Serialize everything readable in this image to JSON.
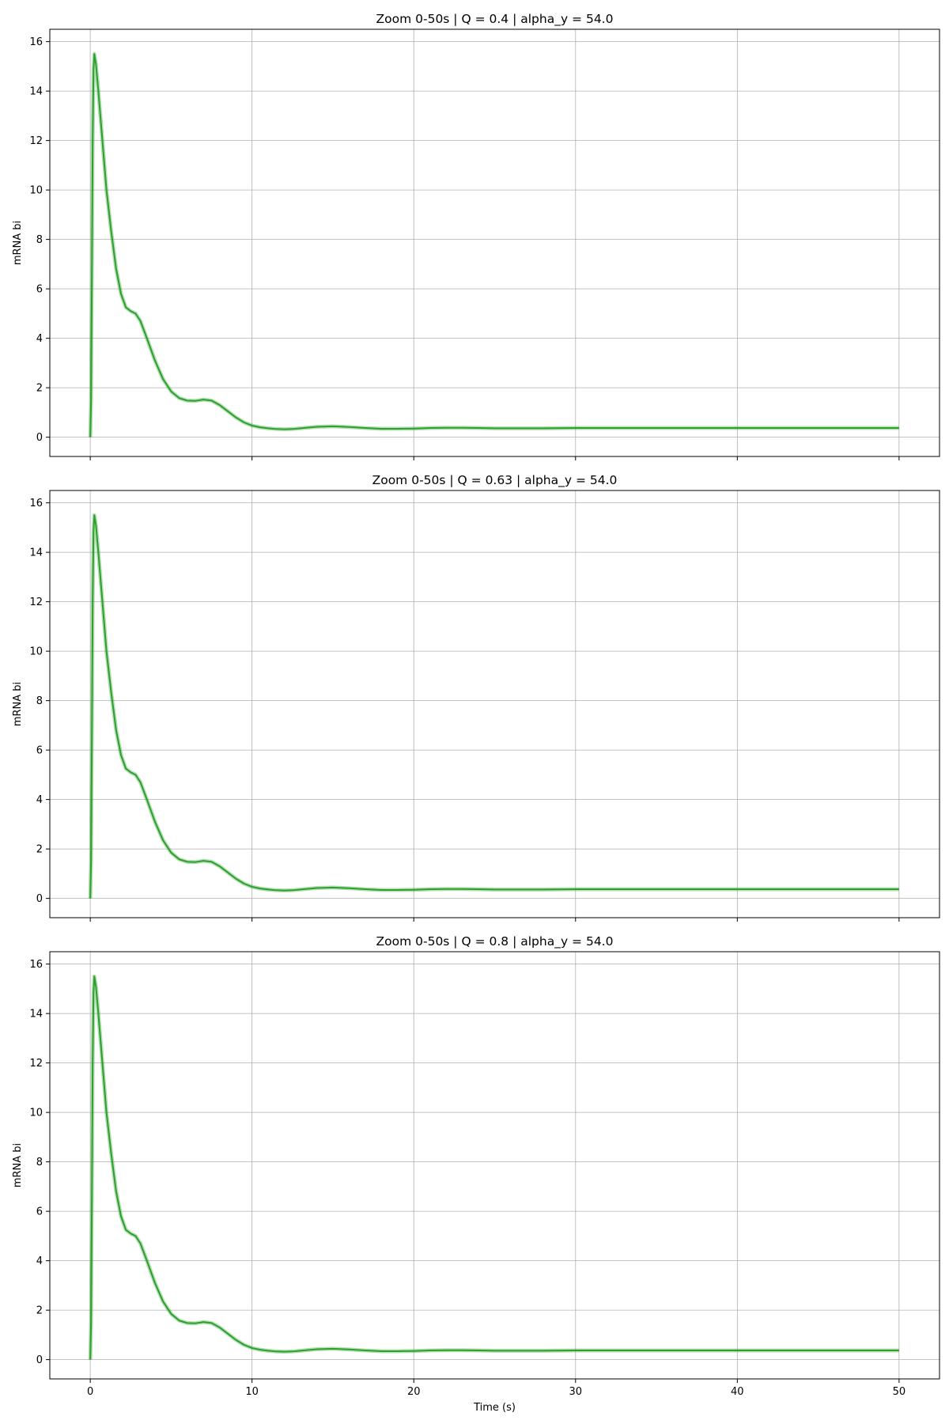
{
  "chart_data": [
    {
      "type": "line",
      "title": "Zoom 0-50s | Q = 0.4 | alpha_y = 54.0",
      "xlabel": "",
      "ylabel": "mRNA bi",
      "xlim": [
        -2.5,
        52.5
      ],
      "ylim": [
        -0.78,
        16.5
      ],
      "xticks": [
        0,
        10,
        20,
        30,
        40,
        50
      ],
      "xtick_labels_visible": false,
      "yticks": [
        0,
        2,
        4,
        6,
        8,
        10,
        12,
        14,
        16
      ],
      "grid": true,
      "color": "#2ca02c",
      "series": [
        {
          "x": [
            0,
            0.05,
            0.1,
            0.15,
            0.2,
            0.25,
            0.35,
            0.5,
            0.75,
            1.0,
            1.3,
            1.6,
            1.9,
            2.2,
            2.5,
            2.8,
            3.1,
            3.5,
            4.0,
            4.5,
            5.0,
            5.5,
            6.0,
            6.5,
            7.0,
            7.5,
            8.0,
            8.5,
            9.0,
            9.5,
            10.0,
            10.5,
            11.0,
            11.5,
            12.0,
            12.5,
            13.0,
            14.0,
            15.0,
            16.0,
            17.0,
            18.0,
            19.0,
            20.0,
            21.0,
            22.0,
            23.0,
            24.0,
            25.0,
            26.0,
            28.0,
            30.0,
            35.0,
            40.0,
            45.0,
            50.0
          ],
          "y": [
            0.0,
            1.5,
            6.5,
            12.0,
            14.8,
            15.5,
            15.1,
            14.0,
            12.0,
            10.0,
            8.3,
            6.8,
            5.8,
            5.25,
            5.1,
            5.0,
            4.7,
            4.0,
            3.1,
            2.35,
            1.85,
            1.58,
            1.48,
            1.47,
            1.52,
            1.48,
            1.3,
            1.05,
            0.8,
            0.6,
            0.47,
            0.4,
            0.36,
            0.33,
            0.32,
            0.33,
            0.36,
            0.42,
            0.44,
            0.41,
            0.37,
            0.34,
            0.34,
            0.35,
            0.37,
            0.38,
            0.38,
            0.37,
            0.36,
            0.36,
            0.36,
            0.37,
            0.37,
            0.37,
            0.37,
            0.37
          ]
        }
      ]
    },
    {
      "type": "line",
      "title": "Zoom 0-50s | Q = 0.63 | alpha_y = 54.0",
      "xlabel": "",
      "ylabel": "mRNA bi",
      "xlim": [
        -2.5,
        52.5
      ],
      "ylim": [
        -0.78,
        16.5
      ],
      "xticks": [
        0,
        10,
        20,
        30,
        40,
        50
      ],
      "xtick_labels_visible": false,
      "yticks": [
        0,
        2,
        4,
        6,
        8,
        10,
        12,
        14,
        16
      ],
      "grid": true,
      "color": "#2ca02c",
      "series": [
        {
          "x": [
            0,
            0.05,
            0.1,
            0.15,
            0.2,
            0.25,
            0.35,
            0.5,
            0.75,
            1.0,
            1.3,
            1.6,
            1.9,
            2.2,
            2.5,
            2.8,
            3.1,
            3.5,
            4.0,
            4.5,
            5.0,
            5.5,
            6.0,
            6.5,
            7.0,
            7.5,
            8.0,
            8.5,
            9.0,
            9.5,
            10.0,
            10.5,
            11.0,
            11.5,
            12.0,
            12.5,
            13.0,
            14.0,
            15.0,
            16.0,
            17.0,
            18.0,
            19.0,
            20.0,
            21.0,
            22.0,
            23.0,
            24.0,
            25.0,
            26.0,
            28.0,
            30.0,
            35.0,
            40.0,
            45.0,
            50.0
          ],
          "y": [
            0.0,
            1.5,
            6.5,
            12.0,
            14.8,
            15.5,
            15.1,
            14.0,
            12.0,
            10.0,
            8.3,
            6.8,
            5.8,
            5.25,
            5.1,
            5.0,
            4.7,
            4.0,
            3.1,
            2.35,
            1.85,
            1.58,
            1.48,
            1.47,
            1.52,
            1.48,
            1.3,
            1.05,
            0.8,
            0.6,
            0.47,
            0.4,
            0.36,
            0.33,
            0.32,
            0.33,
            0.36,
            0.42,
            0.44,
            0.41,
            0.37,
            0.34,
            0.34,
            0.35,
            0.37,
            0.38,
            0.38,
            0.37,
            0.36,
            0.36,
            0.36,
            0.37,
            0.37,
            0.37,
            0.37,
            0.37
          ]
        }
      ]
    },
    {
      "type": "line",
      "title": "Zoom 0-50s | Q = 0.8 | alpha_y = 54.0",
      "xlabel": "Time (s)",
      "ylabel": "mRNA bi",
      "xlim": [
        -2.5,
        52.5
      ],
      "ylim": [
        -0.78,
        16.5
      ],
      "xticks": [
        0,
        10,
        20,
        30,
        40,
        50
      ],
      "xtick_labels_visible": true,
      "yticks": [
        0,
        2,
        4,
        6,
        8,
        10,
        12,
        14,
        16
      ],
      "grid": true,
      "color": "#2ca02c",
      "series": [
        {
          "x": [
            0,
            0.05,
            0.1,
            0.15,
            0.2,
            0.25,
            0.35,
            0.5,
            0.75,
            1.0,
            1.3,
            1.6,
            1.9,
            2.2,
            2.5,
            2.8,
            3.1,
            3.5,
            4.0,
            4.5,
            5.0,
            5.5,
            6.0,
            6.5,
            7.0,
            7.5,
            8.0,
            8.5,
            9.0,
            9.5,
            10.0,
            10.5,
            11.0,
            11.5,
            12.0,
            12.5,
            13.0,
            14.0,
            15.0,
            16.0,
            17.0,
            18.0,
            19.0,
            20.0,
            21.0,
            22.0,
            23.0,
            24.0,
            25.0,
            26.0,
            28.0,
            30.0,
            35.0,
            40.0,
            45.0,
            50.0
          ],
          "y": [
            0.0,
            1.5,
            6.5,
            12.0,
            14.8,
            15.5,
            15.1,
            14.0,
            12.0,
            10.0,
            8.3,
            6.8,
            5.8,
            5.25,
            5.1,
            5.0,
            4.7,
            4.0,
            3.1,
            2.35,
            1.85,
            1.58,
            1.48,
            1.47,
            1.52,
            1.48,
            1.3,
            1.05,
            0.8,
            0.6,
            0.47,
            0.4,
            0.36,
            0.33,
            0.32,
            0.33,
            0.36,
            0.42,
            0.44,
            0.41,
            0.37,
            0.34,
            0.34,
            0.35,
            0.37,
            0.38,
            0.38,
            0.37,
            0.36,
            0.36,
            0.36,
            0.37,
            0.37,
            0.37,
            0.37,
            0.37
          ]
        }
      ]
    }
  ]
}
